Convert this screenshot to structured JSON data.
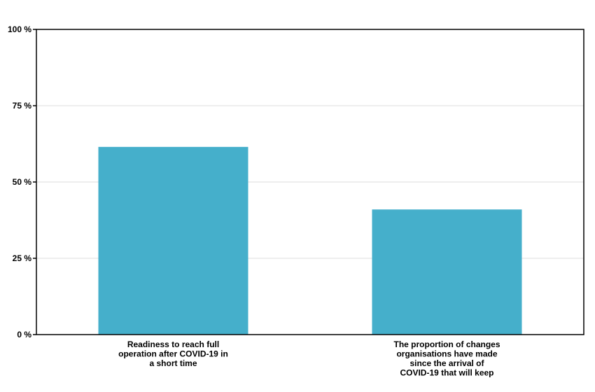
{
  "chart_data": {
    "type": "bar",
    "title": "",
    "xlabel": "",
    "ylabel": "",
    "categories": [
      [
        "Readiness to reach full",
        "operation after COVID-19 in",
        "a short time"
      ],
      [
        "The proportion of changes",
        "organisations have made",
        "since the arrival of",
        "COVID-19 that will keep"
      ]
    ],
    "values": [
      61.5,
      41
    ],
    "ylim": [
      0,
      100
    ],
    "yticks": [
      0,
      25,
      50,
      75,
      100
    ],
    "ytick_labels": [
      "0 %",
      "25 %",
      "50 %",
      "75 %",
      "100 %"
    ],
    "grid": true,
    "legend": "none",
    "colors": {
      "bar": "#45AFCB",
      "grid": "#DDDDDD",
      "axis": "#000000"
    }
  }
}
